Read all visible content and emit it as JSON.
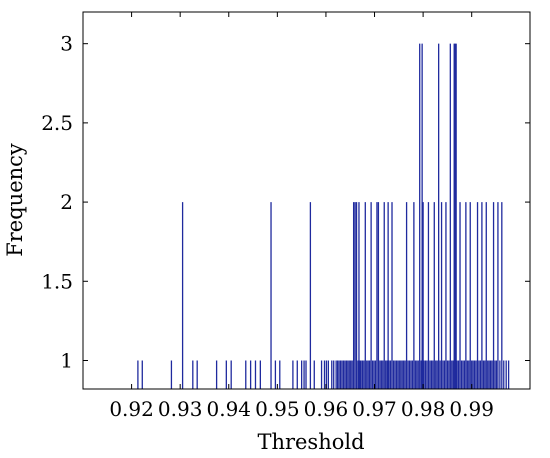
{
  "chart_data": {
    "type": "bar",
    "xlabel": "Threshold",
    "ylabel": "Frequency",
    "xlim": [
      0.91,
      1.002
    ],
    "ylim": [
      0.82,
      3.2
    ],
    "x_ticks": [
      0.92,
      0.93,
      0.94,
      0.95,
      0.96,
      0.97,
      0.98,
      0.99
    ],
    "x_tick_labels": [
      "0.92",
      "0.93",
      "0.94",
      "0.95",
      "0.96",
      "0.97",
      "0.98",
      "0.99"
    ],
    "y_ticks": [
      1,
      1.5,
      2,
      2.5,
      3
    ],
    "y_tick_labels": [
      "1",
      "1.5",
      "2",
      "2.5",
      "3"
    ],
    "grid": false,
    "bar_color": "#1f2a9e",
    "x": [
      0.9213,
      0.9222,
      0.9282,
      0.9305,
      0.9326,
      0.9335,
      0.9375,
      0.9395,
      0.9405,
      0.9435,
      0.9445,
      0.9455,
      0.9465,
      0.9487,
      0.9496,
      0.9505,
      0.9532,
      0.9541,
      0.955,
      0.9555,
      0.9559,
      0.9568,
      0.9576,
      0.9591,
      0.9597,
      0.9601,
      0.9605,
      0.9612,
      0.9616,
      0.9621,
      0.9624,
      0.9627,
      0.963,
      0.9633,
      0.9636,
      0.9639,
      0.9642,
      0.9645,
      0.9648,
      0.9651,
      0.9654,
      0.9657,
      0.966,
      0.9663,
      0.9666,
      0.9668,
      0.967,
      0.9672,
      0.9675,
      0.9678,
      0.9681,
      0.9684,
      0.9687,
      0.969,
      0.9693,
      0.9696,
      0.9699,
      0.9702,
      0.9705,
      0.9708,
      0.9711,
      0.9714,
      0.9717,
      0.972,
      0.9723,
      0.9726,
      0.9728,
      0.973,
      0.9733,
      0.9736,
      0.9739,
      0.9742,
      0.9745,
      0.9748,
      0.9751,
      0.9754,
      0.9757,
      0.976,
      0.9763,
      0.9766,
      0.9769,
      0.9772,
      0.9775,
      0.9778,
      0.9781,
      0.9784,
      0.9787,
      0.979,
      0.9793,
      0.9796,
      0.9798,
      0.98,
      0.9802,
      0.9805,
      0.9808,
      0.9811,
      0.9814,
      0.9817,
      0.982,
      0.9823,
      0.9826,
      0.9829,
      0.9832,
      0.9835,
      0.9838,
      0.9841,
      0.9844,
      0.9847,
      0.985,
      0.9853,
      0.9856,
      0.9859,
      0.9862,
      0.9864,
      0.9866,
      0.9868,
      0.987,
      0.9873,
      0.9876,
      0.9879,
      0.9882,
      0.9885,
      0.9888,
      0.9891,
      0.9894,
      0.9897,
      0.99,
      0.9903,
      0.9906,
      0.9909,
      0.9912,
      0.9915,
      0.9918,
      0.9921,
      0.9924,
      0.9927,
      0.993,
      0.9933,
      0.9936,
      0.9939,
      0.9942,
      0.9945,
      0.9948,
      0.9951,
      0.9954,
      0.9958,
      0.9962,
      0.9966,
      0.9971,
      0.9976
    ],
    "values": [
      1,
      1,
      1,
      2,
      1,
      1,
      1,
      1,
      1,
      1,
      1,
      1,
      1,
      2,
      1,
      1,
      1,
      1,
      1,
      1,
      1,
      2,
      1,
      1,
      1,
      1,
      1,
      1,
      1,
      1,
      1,
      1,
      1,
      1,
      1,
      1,
      1,
      1,
      1,
      1,
      1,
      2,
      2,
      2,
      1,
      2,
      1,
      1,
      1,
      1,
      2,
      1,
      1,
      1,
      2,
      1,
      1,
      1,
      2,
      2,
      1,
      1,
      1,
      2,
      1,
      1,
      2,
      1,
      1,
      2,
      1,
      1,
      1,
      1,
      1,
      1,
      1,
      1,
      1,
      2,
      1,
      1,
      1,
      1,
      2,
      1,
      1,
      1,
      3,
      1,
      3,
      2,
      1,
      1,
      1,
      2,
      1,
      1,
      1,
      2,
      1,
      1,
      3,
      1,
      2,
      1,
      1,
      2,
      1,
      1,
      3,
      1,
      1,
      3,
      3,
      3,
      1,
      1,
      2,
      1,
      1,
      1,
      2,
      1,
      1,
      2,
      1,
      1,
      1,
      1,
      2,
      1,
      1,
      2,
      1,
      1,
      2,
      1,
      1,
      1,
      1,
      2,
      1,
      1,
      2,
      1,
      2,
      1,
      1,
      1
    ]
  }
}
